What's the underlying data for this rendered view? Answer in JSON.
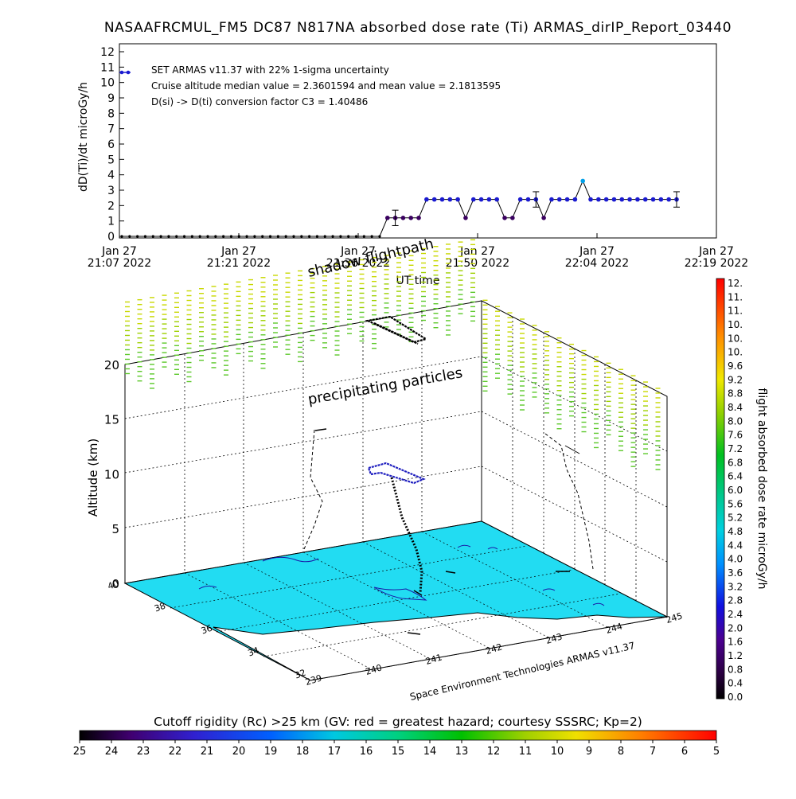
{
  "page": {
    "title": "NASAAFRCMUL_FM5 DC87 N817NA absorbed dose rate (Ti) ARMAS_dirIP_Report_03440",
    "credit": "Space Environment Technologies ARMAS v11.37"
  },
  "chart_data": [
    {
      "type": "line",
      "title": "NASAAFRCMUL_FM5 DC87 N817NA absorbed dose rate (Ti) ARMAS_dirIP_Report_03440",
      "xlabel": "UT time",
      "ylabel": "dD(Ti)/dt microGy/h",
      "ylim": [
        0,
        12
      ],
      "yticks": [
        "0",
        "1",
        "2",
        "3",
        "4",
        "5",
        "6",
        "7",
        "8",
        "9",
        "10",
        "11",
        "12"
      ],
      "xticks": [
        {
          "line1": "Jan 27",
          "line2": "21:07 2022"
        },
        {
          "line1": "Jan 27",
          "line2": "21:21 2022"
        },
        {
          "line1": "Jan 27",
          "line2": "21:36 2022"
        },
        {
          "line1": "Jan 27",
          "line2": "21:50 2022"
        },
        {
          "line1": "Jan 27",
          "line2": "22:04 2022"
        },
        {
          "line1": "Jan 27",
          "line2": "22:19 2022"
        }
      ],
      "x_minutes_from_start": [
        0,
        1,
        2,
        3,
        4,
        5,
        6,
        7,
        8,
        9,
        10,
        11,
        12,
        13,
        14,
        15,
        16,
        17,
        18,
        19,
        20,
        21,
        22,
        23,
        24,
        25,
        26,
        27,
        28,
        29,
        30,
        31,
        32,
        33,
        34,
        35,
        36,
        37,
        38,
        39,
        40,
        41,
        42,
        43,
        44,
        45,
        46,
        47,
        48,
        49,
        50,
        51,
        52,
        53,
        54,
        55,
        56,
        57,
        58,
        59,
        60,
        61,
        62,
        63,
        64,
        65,
        66,
        67,
        68,
        69,
        70,
        71
      ],
      "series": [
        {
          "values": [
            0,
            0,
            0,
            0,
            0,
            0,
            0,
            0,
            0,
            0,
            0,
            0,
            0,
            0,
            0,
            0,
            0,
            0,
            0,
            0,
            0,
            0,
            0,
            0,
            0,
            0,
            0,
            0,
            0,
            0,
            0,
            0,
            0,
            0,
            1.2,
            1.2,
            1.2,
            1.2,
            1.2,
            2.4,
            2.4,
            2.4,
            2.4,
            2.4,
            1.2,
            2.4,
            2.4,
            2.4,
            2.4,
            1.2,
            1.2,
            2.4,
            2.4,
            2.4,
            1.2,
            2.4,
            2.4,
            2.4,
            2.4,
            3.6,
            2.4,
            2.4,
            2.4,
            2.4,
            2.4,
            2.4,
            2.4,
            2.4,
            2.4,
            2.4,
            2.4,
            2.4
          ],
          "error_bars_at_index": [
            35,
            53,
            71
          ],
          "error": 0.5
        }
      ],
      "legend": {
        "entries": [
          "SET ARMAS v11.37 with 22% 1-sigma uncertainty",
          "Cruise altitude median value = 2.3601594 and mean value = 2.1813595",
          "D(si) -> D(ti) conversion factor C3 = 1.40486"
        ],
        "placement": "top-left"
      }
    },
    {
      "type": "scatter",
      "subtype": "3d-flightpath",
      "zlabel": "Altitude (km)",
      "zticks": [
        "0",
        "5",
        "10",
        "15",
        "20"
      ],
      "lat_ticks": [
        "40",
        "38",
        "36",
        "34",
        "32"
      ],
      "lon_ticks": [
        "239",
        "240",
        "241",
        "242",
        "243",
        "244",
        "245"
      ],
      "annotations": [
        "shadow flightpath",
        "precipitating particles"
      ],
      "colorbar": {
        "label": "flight absorbed dose rate microGy/h",
        "ticks": [
          "12.",
          "11.",
          "11.",
          "10.",
          "10.",
          "10.",
          "9.6",
          "9.2",
          "8.8",
          "8.4",
          "8.0",
          "7.6",
          "7.2",
          "6.8",
          "6.4",
          "6.0",
          "5.6",
          "5.2",
          "4.8",
          "4.4",
          "4.0",
          "3.6",
          "3.2",
          "2.8",
          "2.4",
          "2.0",
          "1.6",
          "1.2",
          "0.8",
          "0.4",
          "0.0"
        ]
      },
      "bottom_colorbar": {
        "title": "Cutoff rigidity (Rc) >25 km (GV: red = greatest hazard; courtesy SSSRC; Kp=2)",
        "ticks": [
          "25",
          "24",
          "23",
          "22",
          "21",
          "20",
          "19",
          "18",
          "17",
          "16",
          "15",
          "14",
          "13",
          "12",
          "11",
          "10",
          "9",
          "8",
          "7",
          "6",
          "5"
        ]
      }
    }
  ]
}
